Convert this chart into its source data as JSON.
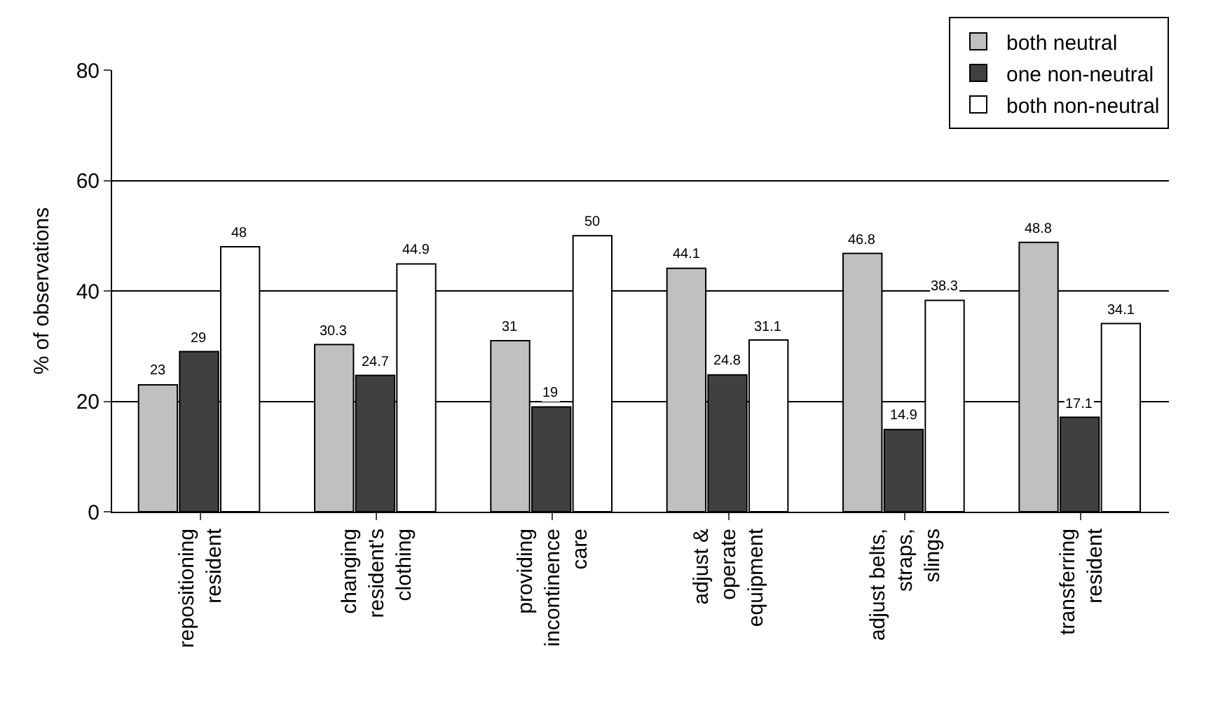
{
  "chart_data": {
    "type": "bar",
    "ylabel": "% of observations",
    "categories": [
      "repositioning resident",
      "changing resident's clothing",
      "providing incontinence care",
      "adjust & operate equipment",
      "adjust belts, straps, slings",
      "transferring resident"
    ],
    "series": [
      {
        "name": "both neutral",
        "color": "#c0c0c0",
        "values": [
          23,
          30.3,
          31,
          44.1,
          46.8,
          48.8
        ]
      },
      {
        "name": "one non-neutral",
        "color": "#404040",
        "values": [
          29,
          24.7,
          19,
          24.8,
          14.9,
          17.1
        ]
      },
      {
        "name": "both non-neutral",
        "color": "#ffffff",
        "values": [
          48,
          44.9,
          50,
          31.1,
          38.3,
          34.1
        ]
      }
    ],
    "ylim": [
      0,
      80
    ],
    "yticks": [
      0,
      20,
      40,
      60,
      80
    ],
    "grid": "y",
    "legend": "top right",
    "data_labels": true
  }
}
